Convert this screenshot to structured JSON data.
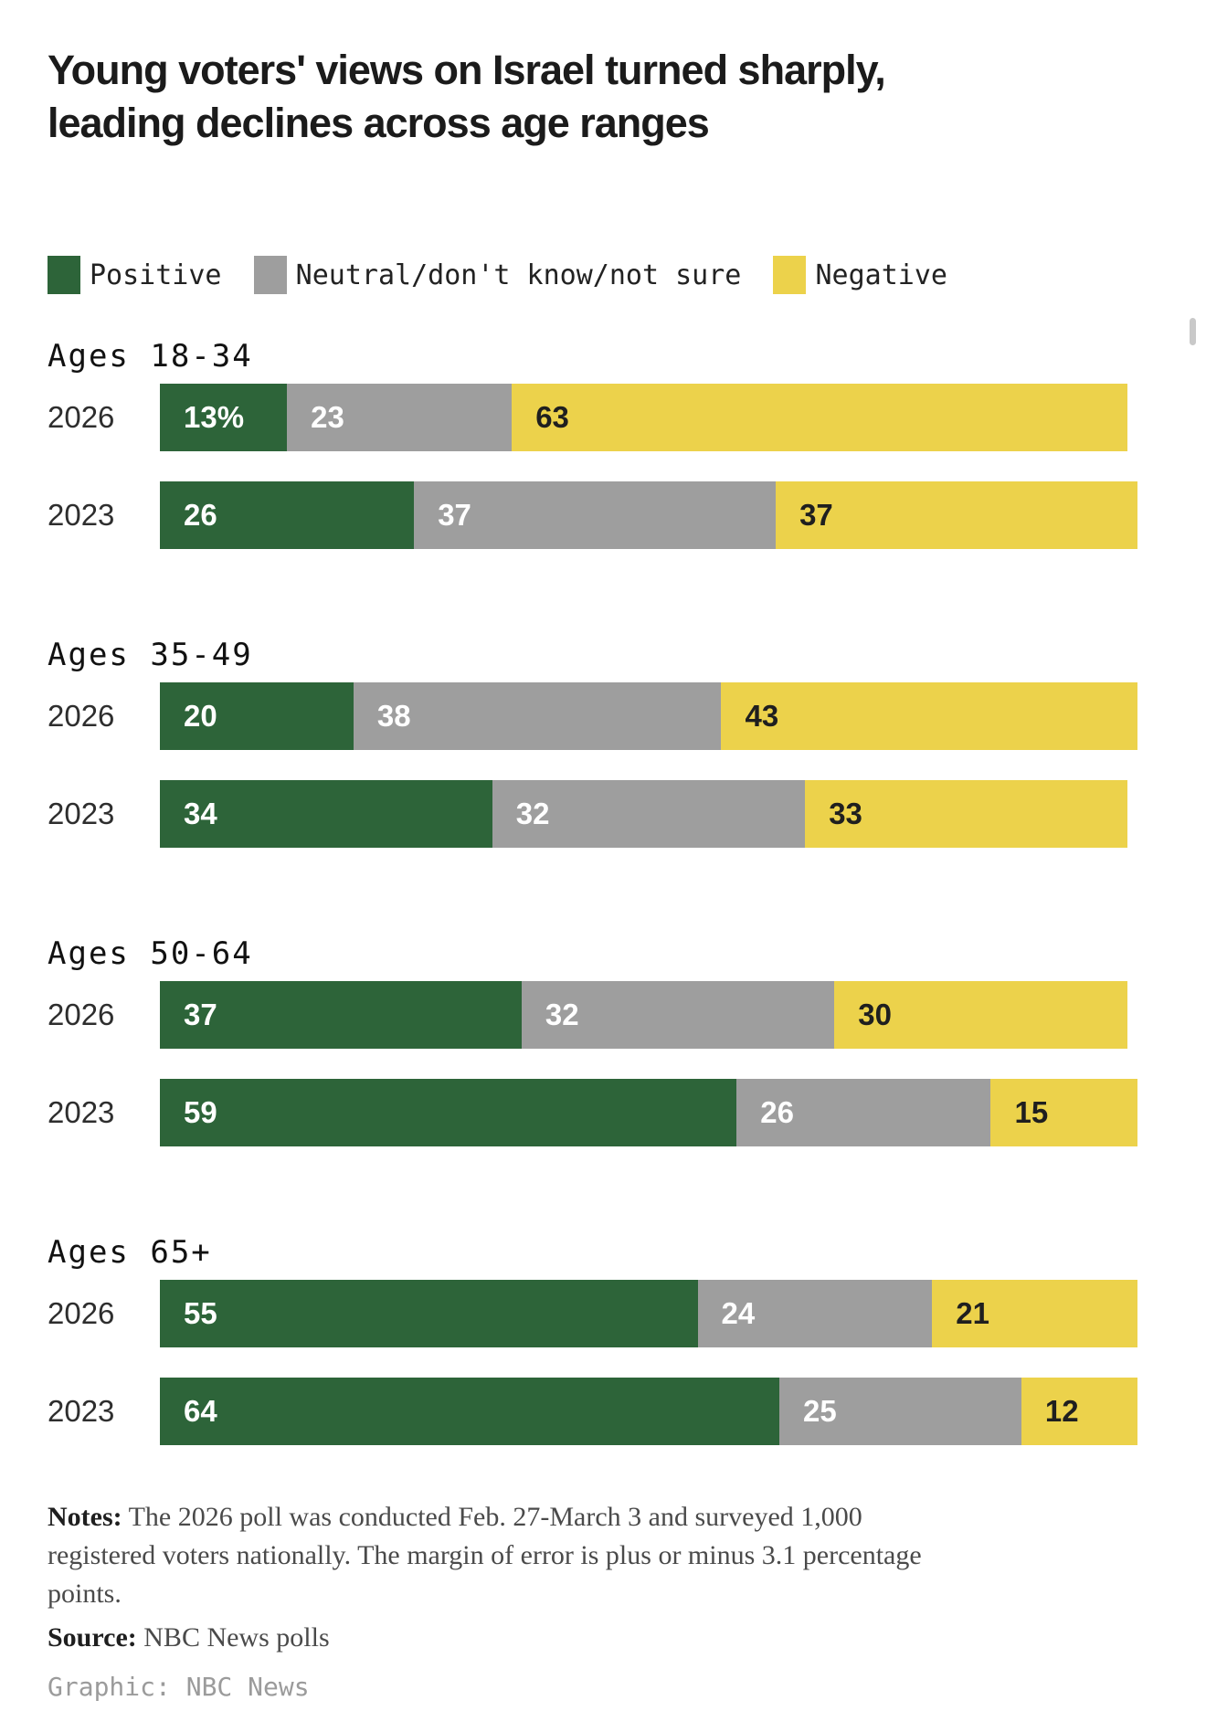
{
  "header": {
    "title_lines": [
      "Young voters' views on Israel turned sharply,",
      "leading declines across age ranges"
    ]
  },
  "legend": {
    "items": [
      {
        "label": "Positive",
        "color": "#2d6439"
      },
      {
        "label": "Neutral/don't know/not sure",
        "color": "#9e9e9e"
      },
      {
        "label": "Negative",
        "color": "#ecd24b"
      }
    ]
  },
  "chart_data": {
    "type": "bar",
    "orientation": "horizontal-stacked",
    "unit": "percent",
    "xlim": [
      0,
      100
    ],
    "series_names": [
      "Positive",
      "Neutral/don't know/not sure",
      "Negative"
    ],
    "series_keys": [
      "positive",
      "neutral",
      "negative"
    ],
    "colors": {
      "positive": "#2d6439",
      "neutral": "#9e9e9e",
      "negative": "#ecd24b"
    },
    "groups": [
      {
        "label": "Ages 18-34",
        "rows": [
          {
            "year": "2026",
            "values": [
              13,
              23,
              63
            ],
            "labels": [
              "13%",
              "23",
              "63"
            ]
          },
          {
            "year": "2023",
            "values": [
              26,
              37,
              37
            ],
            "labels": [
              "26",
              "37",
              "37"
            ]
          }
        ]
      },
      {
        "label": "Ages 35-49",
        "rows": [
          {
            "year": "2026",
            "values": [
              20,
              38,
              43
            ],
            "labels": [
              "20",
              "38",
              "43"
            ]
          },
          {
            "year": "2023",
            "values": [
              34,
              32,
              33
            ],
            "labels": [
              "34",
              "32",
              "33"
            ]
          }
        ]
      },
      {
        "label": "Ages 50-64",
        "rows": [
          {
            "year": "2026",
            "values": [
              37,
              32,
              30
            ],
            "labels": [
              "37",
              "32",
              "30"
            ]
          },
          {
            "year": "2023",
            "values": [
              59,
              26,
              15
            ],
            "labels": [
              "59",
              "26",
              "15"
            ]
          }
        ]
      },
      {
        "label": "Ages 65+",
        "rows": [
          {
            "year": "2026",
            "values": [
              55,
              24,
              21
            ],
            "labels": [
              "55",
              "24",
              "21"
            ]
          },
          {
            "year": "2023",
            "values": [
              64,
              25,
              12
            ],
            "labels": [
              "64",
              "25",
              "12"
            ]
          }
        ]
      }
    ]
  },
  "footer": {
    "notes_label": "Notes:",
    "notes_text": "The 2026 poll was conducted Feb. 27-March 3 and surveyed 1,000 registered voters nationally. The margin of error is plus or minus 3.1 percentage points.",
    "source_label": "Source:",
    "source_text": "NBC News polls",
    "credit": "Graphic: NBC News"
  }
}
